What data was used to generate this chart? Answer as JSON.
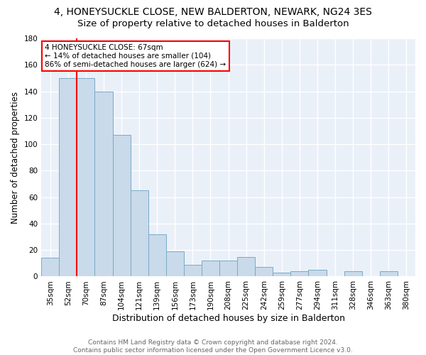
{
  "title": "4, HONEYSUCKLE CLOSE, NEW BALDERTON, NEWARK, NG24 3ES",
  "subtitle": "Size of property relative to detached houses in Balderton",
  "xlabel": "Distribution of detached houses by size in Balderton",
  "ylabel": "Number of detached properties",
  "bar_color": "#c9daea",
  "bar_edge_color": "#7aaac8",
  "background_color": "#eaf0f8",
  "grid_color": "white",
  "categories": [
    "35sqm",
    "52sqm",
    "70sqm",
    "87sqm",
    "104sqm",
    "121sqm",
    "139sqm",
    "156sqm",
    "173sqm",
    "190sqm",
    "208sqm",
    "225sqm",
    "242sqm",
    "259sqm",
    "277sqm",
    "294sqm",
    "311sqm",
    "328sqm",
    "346sqm",
    "363sqm",
    "380sqm"
  ],
  "values": [
    14,
    150,
    150,
    140,
    107,
    65,
    32,
    19,
    9,
    12,
    12,
    15,
    7,
    3,
    4,
    5,
    0,
    4,
    0,
    4,
    0
  ],
  "red_line_bin_index": 2,
  "annotation_text": "4 HONEYSUCKLE CLOSE: 67sqm\n← 14% of detached houses are smaller (104)\n86% of semi-detached houses are larger (624) →",
  "annotation_box_color": "white",
  "annotation_edge_color": "red",
  "ylim": [
    0,
    180
  ],
  "yticks": [
    0,
    20,
    40,
    60,
    80,
    100,
    120,
    140,
    160,
    180
  ],
  "footer_text": "Contains HM Land Registry data © Crown copyright and database right 2024.\nContains public sector information licensed under the Open Government Licence v3.0.",
  "title_fontsize": 10,
  "subtitle_fontsize": 9.5,
  "xlabel_fontsize": 9,
  "ylabel_fontsize": 8.5,
  "tick_fontsize": 7.5,
  "footer_fontsize": 6.5,
  "annotation_fontsize": 7.5
}
